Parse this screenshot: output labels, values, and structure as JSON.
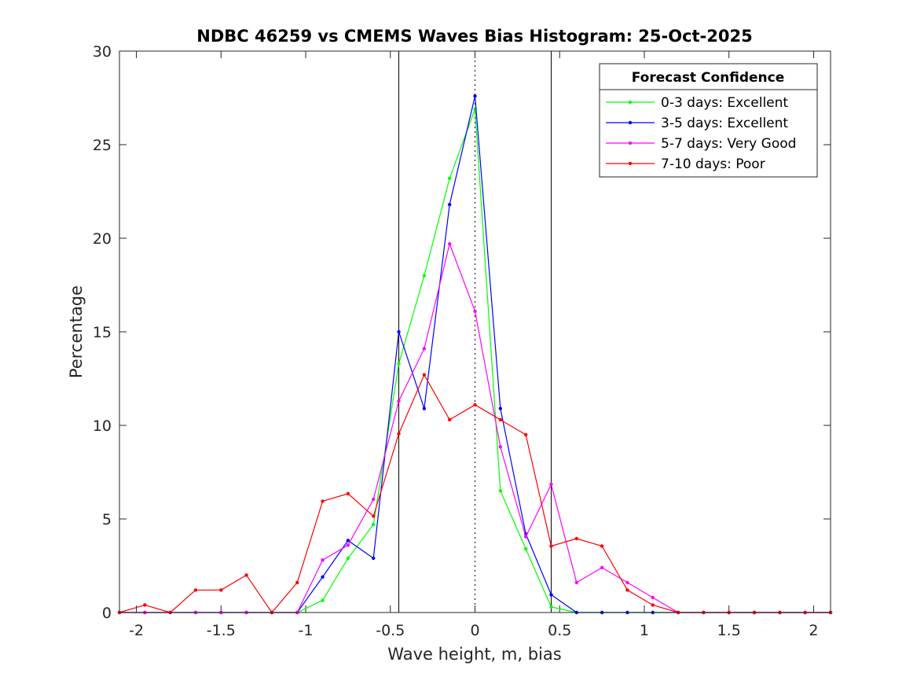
{
  "chart_data": {
    "type": "line",
    "title": "NDBC 46259 vs CMEMS Waves Bias Histogram: 25-Oct-2025",
    "xlabel": "Wave height, m, bias",
    "ylabel": "Percentage",
    "xlim": [
      -2.1,
      2.1
    ],
    "ylim": [
      0,
      30
    ],
    "xticks": [
      -2,
      -1.5,
      -1,
      -0.5,
      0,
      0.5,
      1,
      1.5,
      2
    ],
    "xtick_labels": [
      "-2",
      "-1.5",
      "-1",
      "-0.5",
      "0",
      "0.5",
      "1",
      "1.5",
      "2"
    ],
    "yticks": [
      0,
      5,
      10,
      15,
      20,
      25,
      30
    ],
    "ytick_labels": [
      "0",
      "5",
      "10",
      "15",
      "20",
      "25",
      "30"
    ],
    "grid": false,
    "vertical_lines": [
      {
        "x": -0.45,
        "style": "solid",
        "color": "#000000"
      },
      {
        "x": 0,
        "style": "dotted",
        "color": "#000000"
      },
      {
        "x": 0.45,
        "style": "solid",
        "color": "#000000"
      }
    ],
    "legend": {
      "title": "Forecast Confidence",
      "location": "top-right"
    },
    "x": [
      -2.1,
      -1.95,
      -1.8,
      -1.65,
      -1.5,
      -1.35,
      -1.2,
      -1.05,
      -0.9,
      -0.75,
      -0.6,
      -0.45,
      -0.3,
      -0.15,
      0,
      0.15,
      0.3,
      0.45,
      0.6,
      0.75,
      0.9,
      1.05,
      1.2,
      1.35,
      1.5,
      1.65,
      1.8,
      1.95,
      2.1
    ],
    "series": [
      {
        "name": "0-3 days: Excellent",
        "color": "#00ff00",
        "values": [
          0,
          0,
          0,
          0,
          0,
          0,
          0,
          0,
          0.65,
          2.9,
          4.7,
          13.3,
          18,
          23.2,
          26.9,
          6.5,
          3.4,
          0.3,
          0,
          0,
          0,
          0,
          0,
          0,
          0,
          0,
          0,
          0,
          0
        ]
      },
      {
        "name": "3-5 days: Excellent",
        "color": "#0000ff",
        "values": [
          0,
          0,
          0,
          0,
          0,
          0,
          0,
          0,
          1.9,
          3.85,
          2.9,
          15,
          10.9,
          21.8,
          27.6,
          10.9,
          4.2,
          0.95,
          0,
          0,
          0,
          0,
          0,
          0,
          0,
          0,
          0,
          0,
          0
        ]
      },
      {
        "name": "5-7 days: Very Good",
        "color": "#ff00ff",
        "values": [
          0,
          0,
          0,
          0,
          0,
          0,
          0,
          0,
          2.8,
          3.6,
          6.05,
          11.3,
          14.1,
          19.7,
          16.1,
          8.85,
          4.05,
          6.85,
          1.6,
          2.4,
          1.6,
          0.8,
          0,
          0,
          0,
          0,
          0,
          0,
          0
        ]
      },
      {
        "name": "7-10 days: Poor",
        "color": "#ff0000",
        "values": [
          0,
          0.4,
          0,
          1.2,
          1.2,
          2,
          0,
          1.6,
          5.95,
          6.35,
          5.15,
          9.55,
          12.7,
          10.3,
          11.1,
          10.3,
          9.5,
          3.55,
          3.95,
          3.55,
          1.2,
          0.4,
          0,
          0,
          0,
          0,
          0,
          0,
          0
        ]
      }
    ]
  }
}
